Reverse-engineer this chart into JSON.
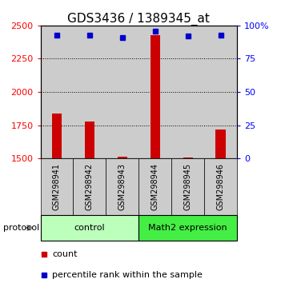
{
  "title": "GDS3436 / 1389345_at",
  "samples": [
    "GSM298941",
    "GSM298942",
    "GSM298943",
    "GSM298944",
    "GSM298945",
    "GSM298946"
  ],
  "counts": [
    1840,
    1775,
    1515,
    2430,
    1510,
    1720
  ],
  "percentile_ranks": [
    93,
    93,
    91,
    96,
    92,
    93
  ],
  "ylim_left": [
    1500,
    2500
  ],
  "ylim_right": [
    0,
    100
  ],
  "yticks_left": [
    1500,
    1750,
    2000,
    2250,
    2500
  ],
  "yticks_right": [
    0,
    25,
    50,
    75,
    100
  ],
  "ytick_labels_right": [
    "0",
    "25",
    "50",
    "75",
    "100%"
  ],
  "bar_color": "#cc0000",
  "dot_color": "#0000cc",
  "bar_bottom": 1500,
  "grid_values": [
    1750,
    2000,
    2250
  ],
  "group_labels": [
    "control",
    "Math2 expression"
  ],
  "group_ranges": [
    [
      0,
      3
    ],
    [
      3,
      6
    ]
  ],
  "group_color_light": "#bbffbb",
  "group_color_dark": "#44ee44",
  "protocol_label": "protocol",
  "legend_items": [
    "count",
    "percentile rank within the sample"
  ],
  "legend_colors": [
    "#cc0000",
    "#0000cc"
  ],
  "sample_area_color": "#cccccc",
  "title_fontsize": 11,
  "tick_fontsize": 8,
  "sample_fontsize": 7,
  "group_fontsize": 8,
  "legend_fontsize": 8
}
